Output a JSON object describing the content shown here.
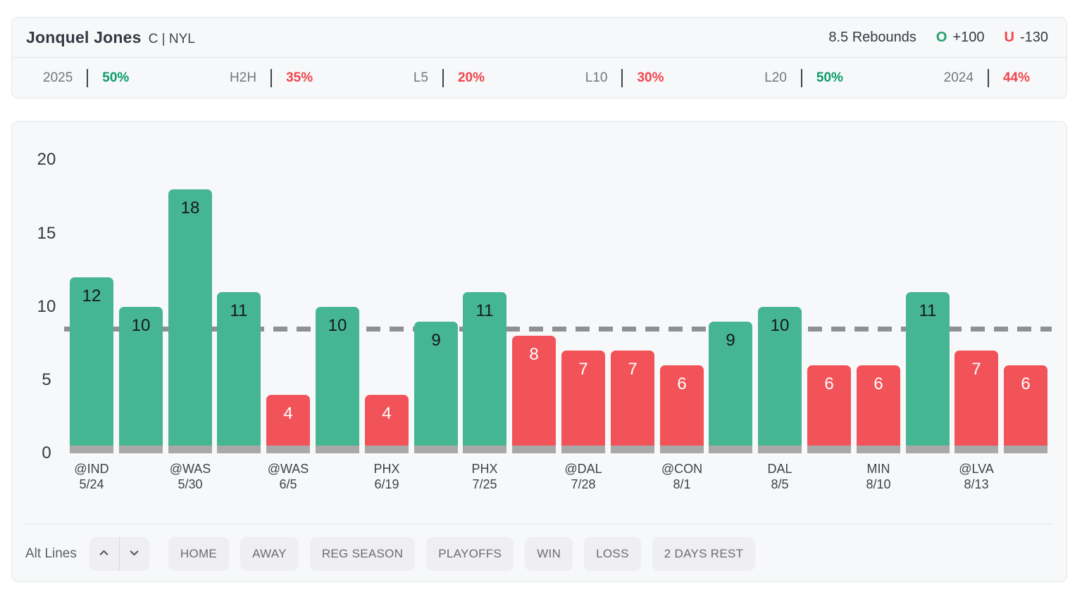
{
  "header": {
    "player": "Jonquel Jones",
    "position": "C | NYL",
    "prop_line": "8.5 Rebounds",
    "over_label": "O",
    "over_odds": "+100",
    "under_label": "U",
    "under_odds": "-130",
    "stats": [
      {
        "label": "2025",
        "value": "50%",
        "trend": "over"
      },
      {
        "label": "H2H",
        "value": "35%",
        "trend": "under"
      },
      {
        "label": "L5",
        "value": "20%",
        "trend": "under"
      },
      {
        "label": "L10",
        "value": "30%",
        "trend": "under"
      },
      {
        "label": "L20",
        "value": "50%",
        "trend": "over"
      },
      {
        "label": "2024",
        "value": "44%",
        "trend": "under"
      }
    ]
  },
  "chart_data": {
    "type": "bar",
    "title": "",
    "xlabel": "",
    "ylabel": "",
    "ylim": [
      0,
      20
    ],
    "yticks": [
      0,
      5,
      10,
      15,
      20
    ],
    "grid": false,
    "legend": "none",
    "prop_line_value": 8.5,
    "bars": [
      {
        "value": 12,
        "result": "over",
        "opponent": "@IND",
        "date": "5/24"
      },
      {
        "value": 10,
        "result": "over"
      },
      {
        "value": 18,
        "result": "over",
        "opponent": "@WAS",
        "date": "5/30"
      },
      {
        "value": 11,
        "result": "over"
      },
      {
        "value": 4,
        "result": "under",
        "opponent": "@WAS",
        "date": "6/5"
      },
      {
        "value": 10,
        "result": "over"
      },
      {
        "value": 4,
        "result": "under",
        "opponent": "PHX",
        "date": "6/19"
      },
      {
        "value": 9,
        "result": "over"
      },
      {
        "value": 11,
        "result": "over",
        "opponent": "PHX",
        "date": "7/25"
      },
      {
        "value": 8,
        "result": "under"
      },
      {
        "value": 7,
        "result": "under",
        "opponent": "@DAL",
        "date": "7/28"
      },
      {
        "value": 7,
        "result": "under"
      },
      {
        "value": 6,
        "result": "under",
        "opponent": "@CON",
        "date": "8/1"
      },
      {
        "value": 9,
        "result": "over"
      },
      {
        "value": 10,
        "result": "over",
        "opponent": "DAL",
        "date": "8/5"
      },
      {
        "value": 6,
        "result": "under"
      },
      {
        "value": 6,
        "result": "under",
        "opponent": "MIN",
        "date": "8/10"
      },
      {
        "value": 11,
        "result": "over"
      },
      {
        "value": 7,
        "result": "under",
        "opponent": "@LVA",
        "date": "8/13"
      },
      {
        "value": 6,
        "result": "under"
      }
    ],
    "colors": {
      "over_bar": "#45b691",
      "under_bar": "#f15359",
      "bar_base": "#a8a8a8",
      "prop_line": "#8e9094",
      "over_text": "#0c9b6a",
      "under_text": "#f2454c"
    }
  },
  "controls": {
    "alt_lines_label": "Alt Lines",
    "up_icon": "chevron-up",
    "down_icon": "chevron-down",
    "filters": [
      "HOME",
      "AWAY",
      "REG SEASON",
      "PLAYOFFS",
      "WIN",
      "LOSS",
      "2 DAYS REST"
    ]
  }
}
